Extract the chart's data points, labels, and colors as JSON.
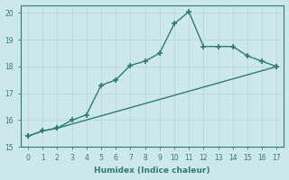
{
  "xlabel": "Humidex (Indice chaleur)",
  "ylabel": "",
  "background_color": "#cce8e8",
  "grid_color": "#b8d8d8",
  "line_color": "#2e7d6e",
  "xlim": [
    -0.5,
    17.5
  ],
  "ylim": [
    15.0,
    20.3
  ],
  "yticks": [
    15,
    16,
    17,
    18,
    19,
    20
  ],
  "xticks": [
    0,
    1,
    2,
    3,
    4,
    5,
    6,
    7,
    8,
    9,
    10,
    11,
    12,
    13,
    14,
    15,
    16,
    17
  ],
  "line1_x": [
    0,
    1,
    2,
    17
  ],
  "line1_y": [
    15.4,
    15.6,
    15.7,
    18.0
  ],
  "line2_x": [
    0,
    1,
    2,
    3,
    4,
    5,
    6,
    7,
    8,
    9,
    10,
    11,
    12,
    13,
    14,
    15,
    16,
    17
  ],
  "line2_y": [
    15.4,
    15.6,
    15.7,
    16.0,
    16.2,
    17.3,
    17.5,
    18.05,
    18.2,
    18.5,
    19.6,
    20.05,
    18.75,
    18.75,
    18.75,
    18.4,
    18.2,
    18.0
  ]
}
